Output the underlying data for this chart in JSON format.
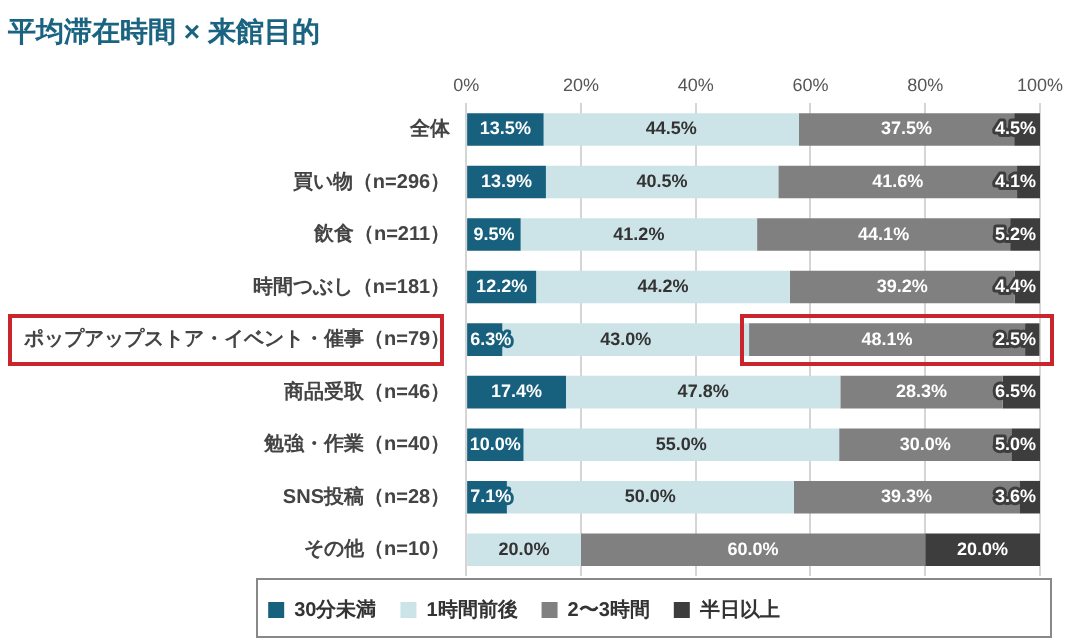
{
  "chart_data": {
    "type": "bar",
    "orientation": "horizontal",
    "stacked": true,
    "title": "平均滞在時間 × 来館目的",
    "categories": [
      "全体",
      "買い物（n=296）",
      "飲食（n=211）",
      "時間つぶし（n=181）",
      "ポップアップストア・イベント・催事（n=79）",
      "商品受取（n=46）",
      "勉強・作業（n=40）",
      "SNS投稿（n=28）",
      "その他（n=10）"
    ],
    "series": [
      {
        "name": "30分未満",
        "color": "#17607e",
        "values": [
          13.5,
          13.9,
          9.5,
          12.2,
          6.3,
          17.4,
          10.0,
          7.1,
          0
        ],
        "value_labels": [
          "13.5%",
          "13.9%",
          "9.5%",
          "12.2%",
          "6.3%",
          "17.4%",
          "10.0%",
          "7.1%",
          null
        ]
      },
      {
        "name": "1時間前後",
        "color": "#cce4e8",
        "values": [
          44.5,
          40.5,
          41.2,
          44.2,
          43.0,
          47.8,
          55.0,
          50.0,
          20.0
        ],
        "value_labels": [
          "44.5%",
          "40.5%",
          "41.2%",
          "44.2%",
          "43.0%",
          "47.8%",
          "55.0%",
          "50.0%",
          "20.0%"
        ]
      },
      {
        "name": "2〜3時間",
        "color": "#808080",
        "values": [
          37.5,
          41.6,
          44.1,
          39.2,
          48.1,
          28.3,
          30.0,
          39.3,
          60.0
        ],
        "value_labels": [
          "37.5%",
          "41.6%",
          "44.1%",
          "39.2%",
          "48.1%",
          "28.3%",
          "30.0%",
          "39.3%",
          "60.0%"
        ]
      },
      {
        "name": "半日以上",
        "color": "#3d3d3d",
        "values": [
          4.5,
          4.1,
          5.2,
          4.4,
          2.5,
          6.5,
          5.0,
          3.6,
          20.0
        ],
        "value_labels": [
          "4.5%",
          "4.1%",
          "5.2%",
          "4.4%",
          "2.5%",
          "6.5%",
          "5.0%",
          "3.6%",
          "20.0%"
        ]
      }
    ],
    "xlim": [
      0,
      100
    ],
    "xticks": [
      {
        "value": 0,
        "label": "0%"
      },
      {
        "value": 20,
        "label": "20%"
      },
      {
        "value": 40,
        "label": "40%"
      },
      {
        "value": 60,
        "label": "60%"
      },
      {
        "value": 80,
        "label": "80%"
      },
      {
        "value": 100,
        "label": "100%"
      }
    ],
    "grid": "x",
    "legend": "bottom"
  }
}
